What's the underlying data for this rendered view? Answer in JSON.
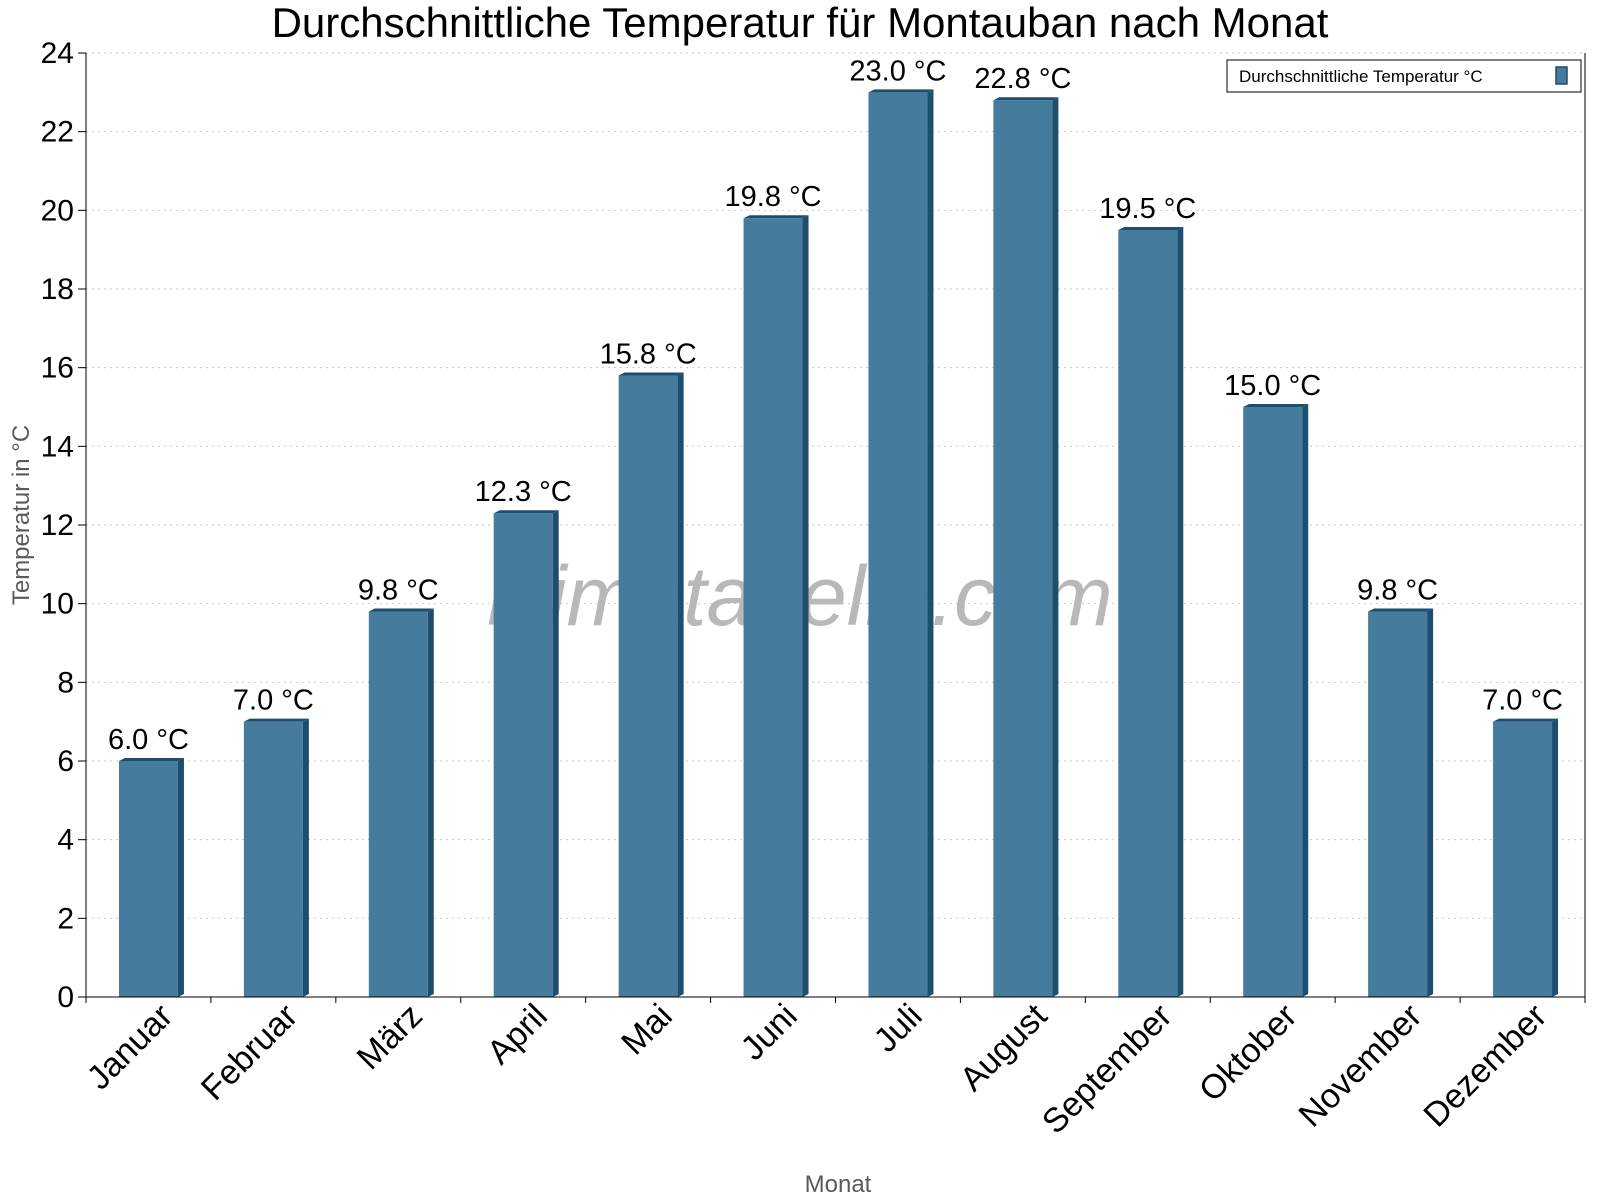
{
  "chart_data": {
    "type": "bar",
    "title": "Durchschnittliche Temperatur für Montauban nach Monat",
    "xlabel": "Monat",
    "ylabel": "Temperatur in °C",
    "ylim": [
      0,
      24
    ],
    "yticks": [
      0,
      2,
      4,
      6,
      8,
      10,
      12,
      14,
      16,
      18,
      20,
      22,
      24
    ],
    "grid": true,
    "legend_position": "top-right",
    "categories": [
      "Januar",
      "Februar",
      "März",
      "April",
      "Mai",
      "Juni",
      "Juli",
      "August",
      "September",
      "Oktober",
      "November",
      "Dezember"
    ],
    "series": [
      {
        "name": "Durchschnittliche Temperatur °C",
        "values": [
          6.0,
          7.0,
          9.8,
          12.3,
          15.8,
          19.8,
          23.0,
          22.8,
          19.5,
          15.0,
          9.8,
          7.0
        ],
        "labels": [
          "6.0 °C",
          "7.0 °C",
          "9.8 °C",
          "12.3 °C",
          "15.8 °C",
          "19.8 °C",
          "23.0 °C",
          "22.8 °C",
          "19.5 °C",
          "15.0 °C",
          "9.8 °C",
          "7.0 °C"
        ],
        "color": "#457b9d",
        "shade_color": "#1d4e6e"
      }
    ],
    "watermark": "klimatabelle.com"
  }
}
